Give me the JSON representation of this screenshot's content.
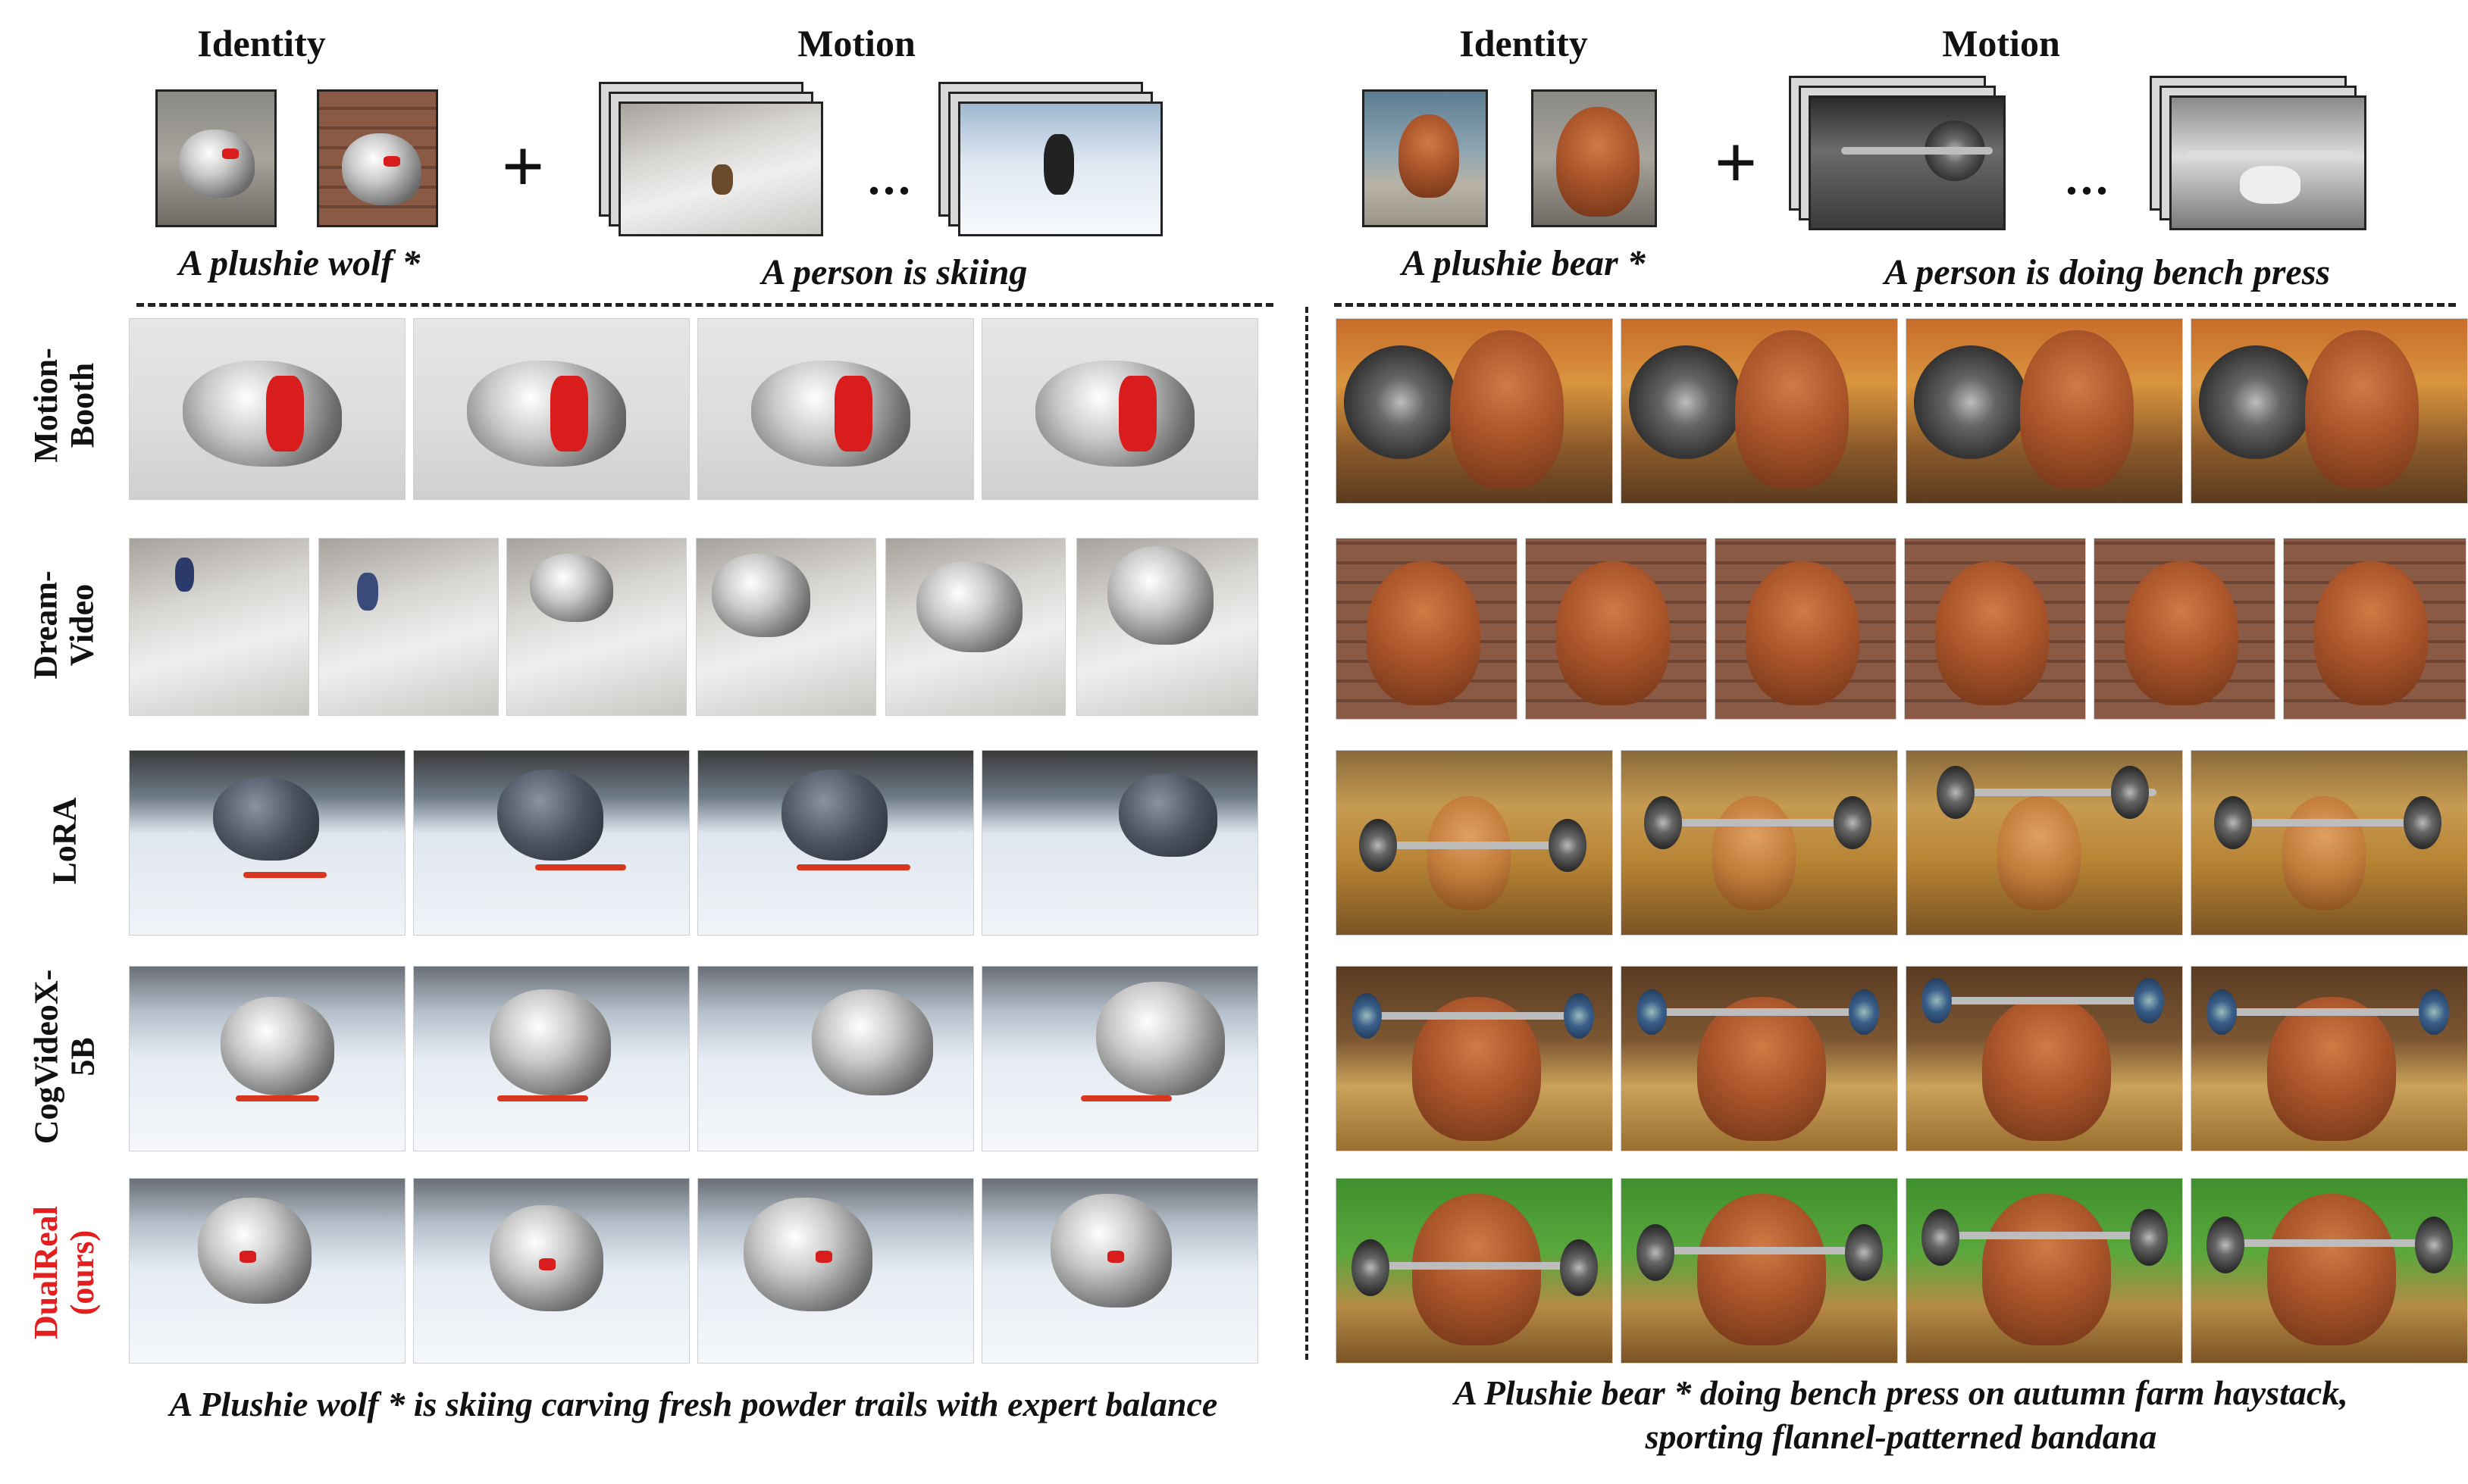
{
  "left": {
    "identity_label": "Identity",
    "motion_label": "Motion",
    "plus": "+",
    "dots": "...",
    "identity_caption": "A plushie wolf *",
    "motion_caption": "A person is skiing",
    "bottom_caption": "A Plushie wolf * is skiing carving fresh powder trails with expert balance"
  },
  "right": {
    "identity_label": "Identity",
    "motion_label": "Motion",
    "plus": "+",
    "dots": "...",
    "identity_caption": "A plushie bear *",
    "motion_caption": "A person is doing bench press",
    "bottom_caption_line1": "A Plushie bear * doing bench press on autumn farm haystack,",
    "bottom_caption_line2": "sporting flannel-patterned bandana"
  },
  "rows": [
    {
      "label": "Motion-\nBooth",
      "highlight": false
    },
    {
      "label": "Dream-\nVideo",
      "highlight": false
    },
    {
      "label": "LoRA",
      "highlight": false
    },
    {
      "label": "CogVideoX-\n5B",
      "highlight": false
    },
    {
      "label": "DualReal\n(ours)",
      "highlight": true
    }
  ],
  "colors": {
    "highlight": "#e21e1e",
    "dashes": "#222222"
  }
}
